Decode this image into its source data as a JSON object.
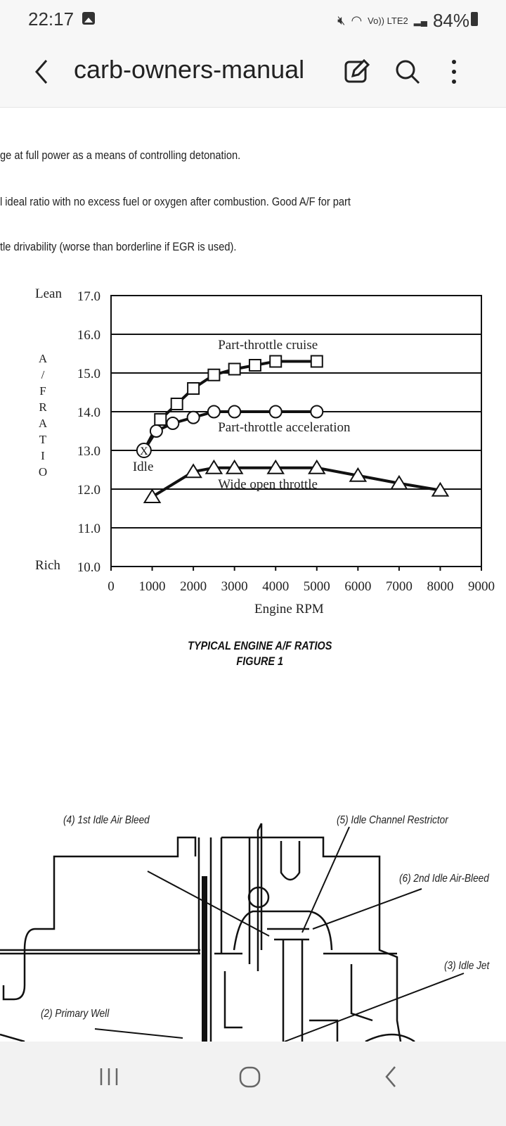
{
  "status_bar": {
    "time": "22:17",
    "network": "Vo)) LTE2",
    "battery": "84%",
    "icons": [
      "gallery-icon",
      "mute-icon",
      "wifi-icon",
      "signal-icon",
      "battery-icon"
    ]
  },
  "app_bar": {
    "title": "carb-owners-manual",
    "icons": [
      "back-icon",
      "edit-icon",
      "search-icon",
      "more-icon"
    ]
  },
  "document": {
    "lines": [
      "ge at full power as a means of controlling detonation.",
      "l ideal ratio with no excess fuel or oxygen after combustion. Good A/F for part",
      "tle drivability (worse than borderline if EGR is used)."
    ],
    "figure_caption": [
      "TYPICAL ENGINE A/F RATIOS",
      "FIGURE 1"
    ],
    "diagram_labels": [
      "(4)  1st Idle Air Bleed",
      "(5)  Idle Channel Restrictor",
      "(6)  2nd Idle Air-Bleed",
      "(3)  Idle Jet",
      "(2)  Primary Well"
    ]
  },
  "chart_data": {
    "type": "line",
    "xlabel": "Engine RPM",
    "ylabel": "A / F RATIO",
    "y_end_labels": {
      "top": "Lean",
      "bottom": "Rich"
    },
    "xlim": [
      0,
      9000
    ],
    "ylim": [
      10.0,
      17.0
    ],
    "xticks": [
      "0",
      "1000",
      "2000",
      "3000",
      "4000",
      "5000",
      "6000",
      "7000",
      "8000",
      "9000"
    ],
    "yticks": [
      "17.0",
      "16.0",
      "15.0",
      "14.0",
      "13.0",
      "12.0",
      "11.0",
      "10.0"
    ],
    "grid": "horizontal",
    "series": [
      {
        "name": "Part-throttle cruise",
        "marker": "square",
        "x": [
          800,
          1200,
          1600,
          2000,
          2500,
          3000,
          3500,
          4000,
          5000
        ],
        "y": [
          13.0,
          13.8,
          14.2,
          14.6,
          14.95,
          15.1,
          15.2,
          15.3,
          15.3
        ]
      },
      {
        "name": "Part-throttle acceleration",
        "marker": "circle",
        "x": [
          800,
          1100,
          1500,
          2000,
          2500,
          3000,
          4000,
          5000
        ],
        "y": [
          13.0,
          13.5,
          13.7,
          13.85,
          14.0,
          14.0,
          14.0,
          14.0
        ]
      },
      {
        "name": "Wide open throttle",
        "marker": "triangle",
        "x": [
          1000,
          2000,
          2500,
          3000,
          4000,
          5000,
          6000,
          7000,
          8000
        ],
        "y": [
          11.8,
          12.45,
          12.55,
          12.55,
          12.55,
          12.55,
          12.35,
          12.15,
          11.97
        ]
      }
    ],
    "annotations": [
      {
        "text": "Idle",
        "x": 800,
        "y": 13.0
      }
    ]
  }
}
